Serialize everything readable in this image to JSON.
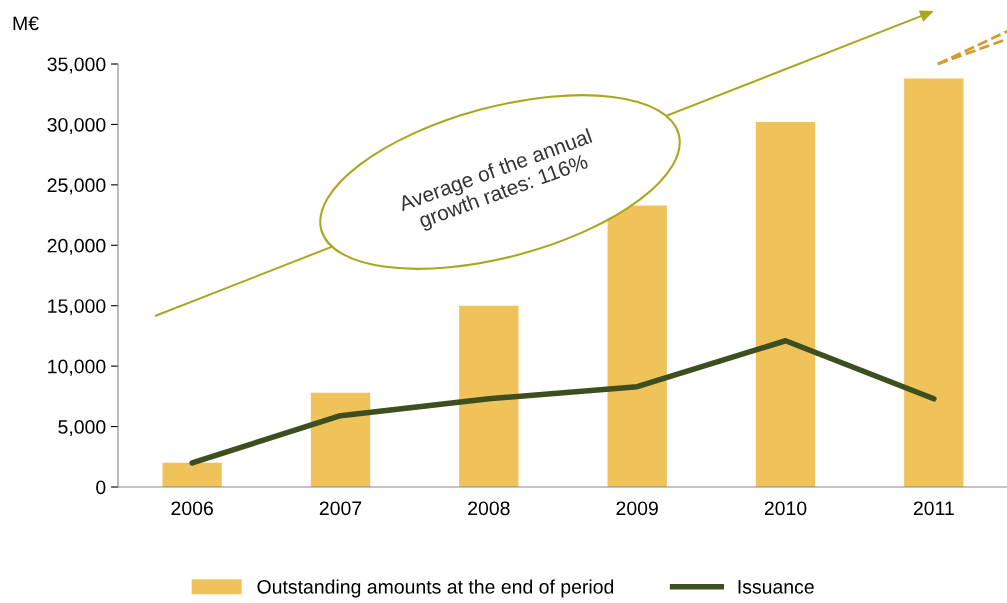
{
  "chart_data": {
    "type": "bar",
    "ylabel": "M€",
    "categories": [
      "2006",
      "2007",
      "2008",
      "2009",
      "2010",
      "2011"
    ],
    "series": [
      {
        "name": "Outstanding amounts at the end of period",
        "color": "#f0c35a",
        "values": [
          2000,
          7800,
          15000,
          23300,
          30200,
          33800
        ]
      },
      {
        "name": "Issuance",
        "type": "line",
        "color": "#3d4f1f",
        "values": [
          2000,
          5900,
          7300,
          8300,
          12100,
          7300
        ]
      }
    ],
    "ylim": [
      0,
      35000
    ],
    "yticks": [
      {
        "value": 0,
        "label": "0"
      },
      {
        "value": 5000,
        "label": "5,000"
      },
      {
        "value": 10000,
        "label": "10,000"
      },
      {
        "value": 15000,
        "label": "15,000"
      },
      {
        "value": 20000,
        "label": "20,000"
      },
      {
        "value": 25000,
        "label": "25,000"
      },
      {
        "value": 30000,
        "label": "30,000"
      },
      {
        "value": 35000,
        "label": "35,000"
      }
    ],
    "annotations": [
      "Average of the annual\ngrowth rates: 116%"
    ],
    "grid": false,
    "legend": "bottom",
    "marker": "none",
    "line_style": "solid"
  }
}
